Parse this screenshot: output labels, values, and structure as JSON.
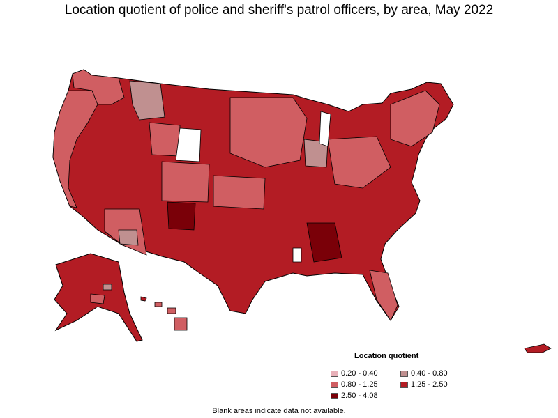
{
  "title": "Location quotient of police and sheriff's patrol officers, by area, May 2022",
  "legend": {
    "title": "Location quotient",
    "items": [
      {
        "label": "0.20 - 0.40",
        "color": "#e8b0b8"
      },
      {
        "label": "0.40 - 0.80",
        "color": "#c09090"
      },
      {
        "label": "0.80 - 1.25",
        "color": "#d05e62"
      },
      {
        "label": "1.25 - 2.50",
        "color": "#b31c24"
      },
      {
        "label": "2.50 - 4.08",
        "color": "#7a0008"
      }
    ]
  },
  "note": "Blank areas indicate data not available.",
  "colors": {
    "border": "#000000",
    "blank": "#ffffff"
  }
}
